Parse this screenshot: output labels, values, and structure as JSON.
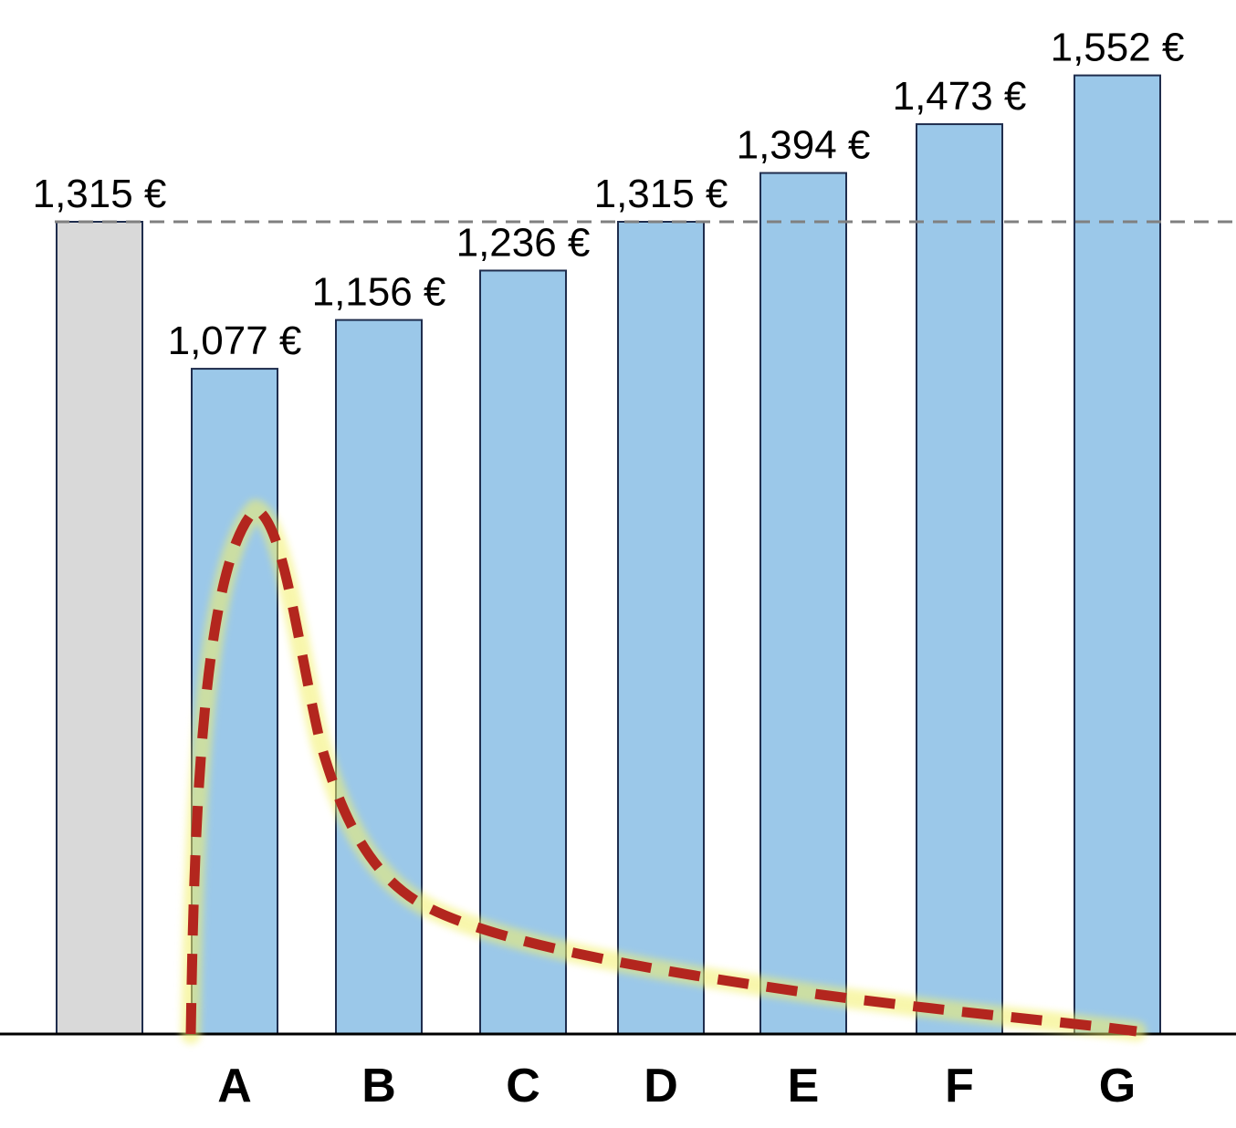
{
  "chart_data": {
    "type": "bar",
    "categories": [
      "",
      "A",
      "B",
      "C",
      "D",
      "E",
      "F",
      "G"
    ],
    "values": [
      1315,
      1077,
      1156,
      1236,
      1315,
      1394,
      1473,
      1552
    ],
    "value_labels": [
      "1,315 €",
      "1,077 €",
      "1,156 €",
      "1,236 €",
      "1,315 €",
      "1,394 €",
      "1,473 €",
      "1,552 €"
    ],
    "bar_colors": [
      "#d9d9d9",
      "#9bc8e9",
      "#9bc8e9",
      "#9bc8e9",
      "#9bc8e9",
      "#9bc8e9",
      "#9bc8e9",
      "#9bc8e9"
    ],
    "reference_line": {
      "value": 1315,
      "style": "dashed",
      "color": "#808080"
    },
    "overlay_curve": {
      "style": "dashed",
      "color": "#b3261e",
      "glow_color": "#f3f06a",
      "shape": "right-skewed distribution"
    },
    "title": "",
    "xlabel": "",
    "ylabel": "",
    "ylim": [
      0,
      1600
    ],
    "grid": false,
    "legend": "none"
  }
}
